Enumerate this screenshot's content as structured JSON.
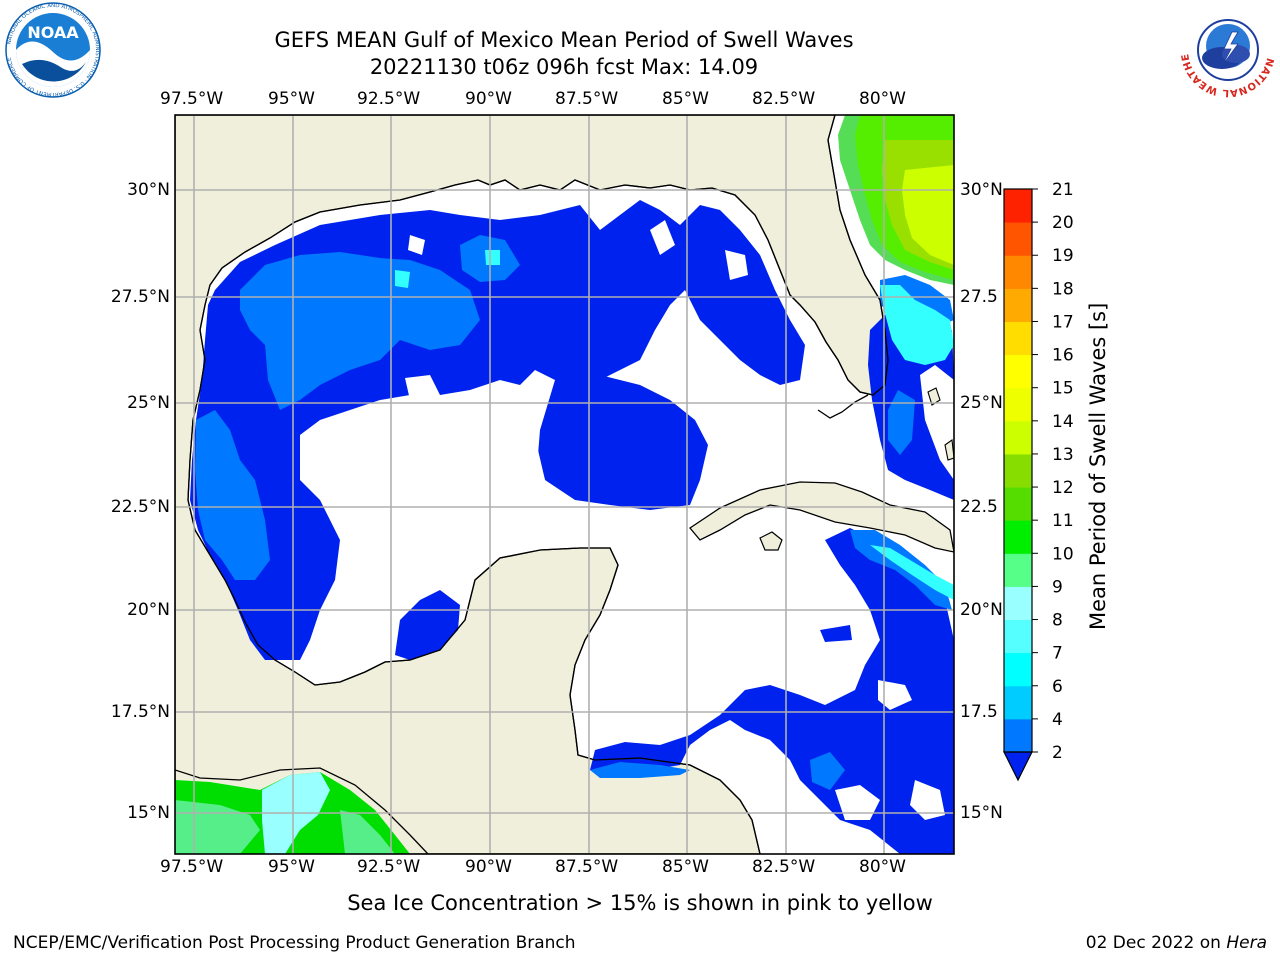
{
  "header": {
    "title_line1": "GEFS MEAN Gulf of Mexico Mean Period of Swell Waves",
    "title_line2": "20221130 t06z 096h fcst   Max: 14.09"
  },
  "logos": {
    "left": {
      "name": "noaa-logo",
      "text": "NOAA",
      "ring_text": "NATIONAL OCEANIC AND ATMOSPHERIC ADMINISTRATION · U.S. DEPARTMENT OF COMMERCE",
      "color": "#0a5eb0"
    },
    "right": {
      "name": "nws-logo",
      "ring_text": "NATIONAL WEATHER SERVICE",
      "color": "#d7261e"
    }
  },
  "map": {
    "lon_ticks": [
      "97.5°W",
      "95°W",
      "92.5°W",
      "90°W",
      "87.5°W",
      "85°W",
      "82.5°W",
      "80°W"
    ],
    "lat_ticks_left": [
      "30°N",
      "27.5°N",
      "25°N",
      "22.5°N",
      "20°N",
      "17.5°N",
      "15°N"
    ],
    "lat_ticks_right": [
      "30°N",
      "27.5",
      "25°N",
      "22.5",
      "20°N",
      "17.5",
      "15°N"
    ],
    "land_color": "#efefdc",
    "ocean_color": "#ffffff",
    "grid_color": "#b0b0b0"
  },
  "colorbar": {
    "label": "Mean Period of Swell Waves [s]",
    "ticks": [
      "2",
      "4",
      "6",
      "7",
      "8",
      "9",
      "10",
      "11",
      "12",
      "13",
      "14",
      "15",
      "16",
      "17",
      "18",
      "19",
      "20",
      "21"
    ],
    "colors": [
      "#0078ff",
      "#00ccff",
      "#00ffff",
      "#55ffff",
      "#99ffff",
      "#55ff88",
      "#00ee00",
      "#55dd00",
      "#88dd00",
      "#ccff00",
      "#eeff00",
      "#ffff00",
      "#ffdd00",
      "#ffaa00",
      "#ff8800",
      "#ff5500",
      "#ff2200",
      "#ff0000"
    ],
    "extend_color": "#0022ee"
  },
  "caption": "Sea Ice Concentration > 15% is shown in pink to yellow",
  "footer": {
    "left": "NCEP/EMC/Verification Post Processing Product Generation Branch",
    "date": "02 Dec 2022 on ",
    "host": "Hera"
  }
}
